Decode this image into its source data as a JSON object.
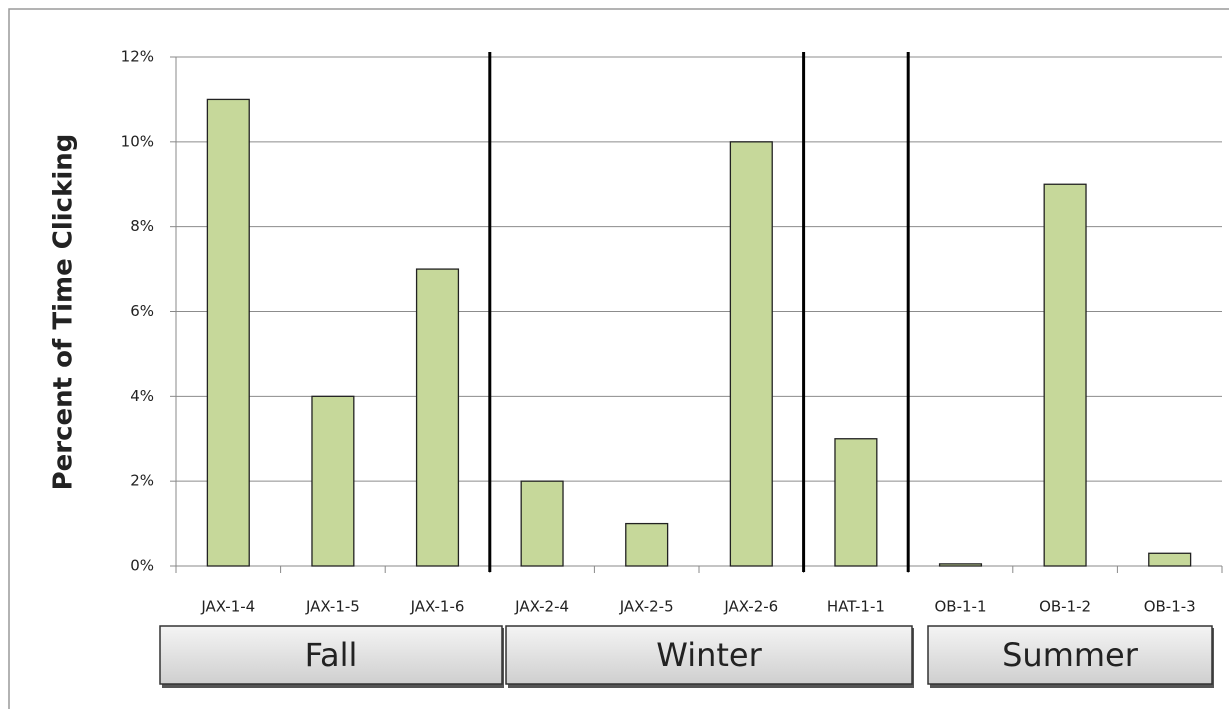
{
  "chart_data": {
    "type": "bar",
    "y_label": "Percent of Time Clicking",
    "categories": [
      "JAX-1-4",
      "JAX-1-5",
      "JAX-1-6",
      "JAX-2-4",
      "JAX-2-5",
      "JAX-2-6",
      "HAT-1-1",
      "OB-1-1",
      "OB-1-2",
      "OB-1-3"
    ],
    "values": [
      11,
      4,
      7,
      2,
      1,
      10,
      3,
      0.05,
      9,
      0.3
    ],
    "color": "#c6d89a",
    "ylim": [
      0,
      12
    ],
    "yticks": [
      {
        "value": 0,
        "label": "0%"
      },
      {
        "value": 2,
        "label": "2%"
      },
      {
        "value": 4,
        "label": "4%"
      },
      {
        "value": 6,
        "label": "6%"
      },
      {
        "value": 8,
        "label": "8%"
      },
      {
        "value": 10,
        "label": "10%"
      },
      {
        "value": 12,
        "label": "12%"
      }
    ],
    "grid": true,
    "groups": [
      "Fall",
      "Winter",
      "Summer"
    ]
  }
}
